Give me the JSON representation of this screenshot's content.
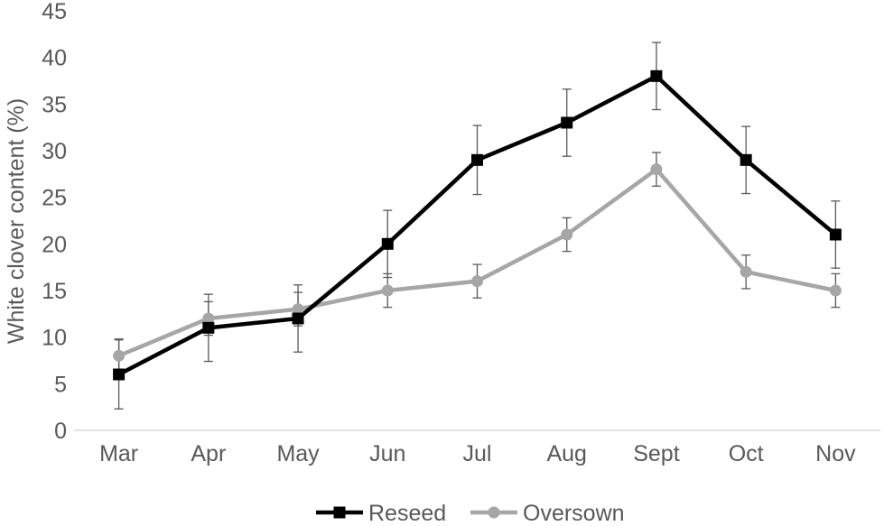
{
  "chart_data": {
    "type": "line",
    "title": "",
    "xlabel": "",
    "ylabel": "White clover content (%)",
    "categories": [
      "Mar",
      "Apr",
      "May",
      "Jun",
      "Jul",
      "Aug",
      "Sept",
      "Oct",
      "Nov"
    ],
    "ylim": [
      0,
      45
    ],
    "yticks": [
      0,
      5,
      10,
      15,
      20,
      25,
      30,
      35,
      40,
      45
    ],
    "grid": false,
    "legend_position": "bottom-center",
    "series": [
      {
        "name": "Reseed",
        "color": "#000000",
        "marker": "square",
        "values": [
          6,
          11,
          12,
          20,
          29,
          33,
          38,
          29,
          21
        ],
        "error": [
          3.7,
          3.6,
          3.6,
          3.6,
          3.7,
          3.6,
          3.6,
          3.6,
          3.6
        ]
      },
      {
        "name": "Oversown",
        "color": "#a6a6a6",
        "marker": "circle",
        "values": [
          8,
          12,
          13,
          15,
          16,
          21,
          28,
          17,
          15
        ],
        "error": [
          1.8,
          1.8,
          1.8,
          1.8,
          1.8,
          1.8,
          1.8,
          1.8,
          1.8
        ]
      }
    ]
  }
}
